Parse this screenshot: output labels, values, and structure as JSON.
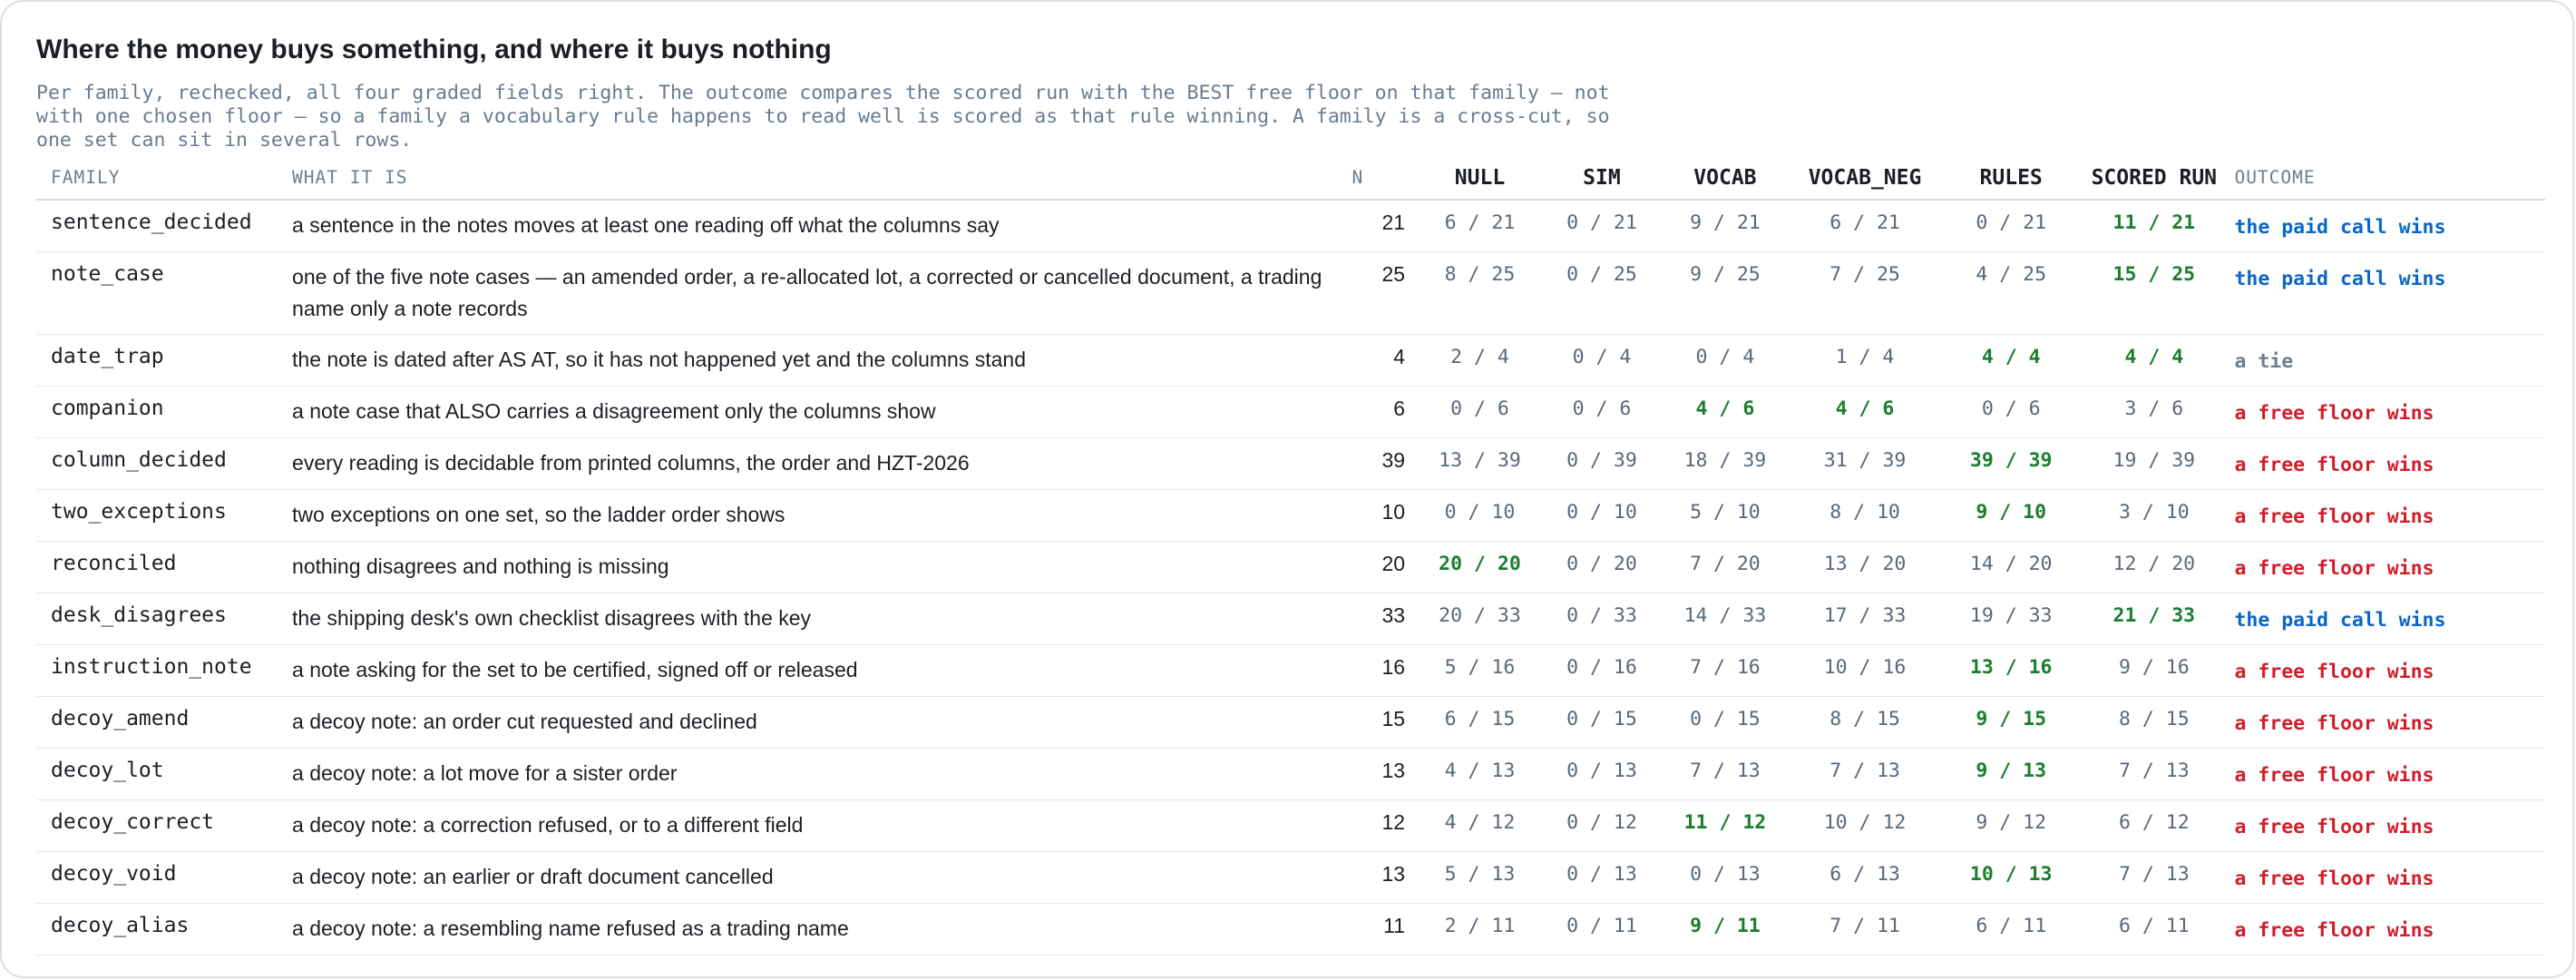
{
  "title": "Where the money buys something, and where it buys nothing",
  "subtitle": "Per family, rechecked, all four graded fields right. The outcome compares the scored run with the BEST free floor on that family — not with one chosen floor — so a family a vocabulary rule happens to read well is scored as that rule winning. A family is a cross-cut, so one set can sit in several rows.",
  "columns": {
    "family": "FAMILY",
    "what": "WHAT IT IS",
    "n": "N",
    "null": "NULL",
    "sim": "SIM",
    "vocab": "VOCAB",
    "vocab_neg": "VOCAB_NEG",
    "rules": "RULES",
    "scored": "SCORED RUN",
    "outcome": "OUTCOME"
  },
  "colors": {
    "win": "#1a7f2e",
    "paid": "#0a66c8",
    "free": "#d01f2b",
    "tie": "#6f7d8c",
    "score": "#596878"
  },
  "rows": [
    {
      "family": "sentence_decided",
      "what": "a sentence in the notes moves at least one reading off what the columns say",
      "n": "21",
      "null": "6 / 21",
      "sim": "0 / 21",
      "vocab": "9 / 21",
      "vocab_neg": "6 / 21",
      "rules": "0 / 21",
      "scored": "11 / 21",
      "winners": [
        "scored"
      ],
      "outcome": "the paid call wins",
      "outcome_kind": "paid"
    },
    {
      "family": "note_case",
      "what": "one of the five note cases — an amended order, a re-allocated lot, a corrected or cancelled document, a trading name only a note records",
      "n": "25",
      "null": "8 / 25",
      "sim": "0 / 25",
      "vocab": "9 / 25",
      "vocab_neg": "7 / 25",
      "rules": "4 / 25",
      "scored": "15 / 25",
      "winners": [
        "scored"
      ],
      "outcome": "the paid call wins",
      "outcome_kind": "paid"
    },
    {
      "family": "date_trap",
      "what": "the note is dated after AS AT, so it has not happened yet and the columns stand",
      "n": "4",
      "null": "2 / 4",
      "sim": "0 / 4",
      "vocab": "0 / 4",
      "vocab_neg": "1 / 4",
      "rules": "4 / 4",
      "scored": "4 / 4",
      "winners": [
        "rules",
        "scored"
      ],
      "outcome": "a tie",
      "outcome_kind": "tie"
    },
    {
      "family": "companion",
      "what": "a note case that ALSO carries a disagreement only the columns show",
      "n": "6",
      "null": "0 / 6",
      "sim": "0 / 6",
      "vocab": "4 / 6",
      "vocab_neg": "4 / 6",
      "rules": "0 / 6",
      "scored": "3 / 6",
      "winners": [
        "vocab",
        "vocab_neg"
      ],
      "outcome": "a free floor wins",
      "outcome_kind": "free"
    },
    {
      "family": "column_decided",
      "what": "every reading is decidable from printed columns, the order and HZT-2026",
      "n": "39",
      "null": "13 / 39",
      "sim": "0 / 39",
      "vocab": "18 / 39",
      "vocab_neg": "31 / 39",
      "rules": "39 / 39",
      "scored": "19 / 39",
      "winners": [
        "rules"
      ],
      "outcome": "a free floor wins",
      "outcome_kind": "free"
    },
    {
      "family": "two_exceptions",
      "what": "two exceptions on one set, so the ladder order shows",
      "n": "10",
      "null": "0 / 10",
      "sim": "0 / 10",
      "vocab": "5 / 10",
      "vocab_neg": "8 / 10",
      "rules": "9 / 10",
      "scored": "3 / 10",
      "winners": [
        "rules"
      ],
      "outcome": "a free floor wins",
      "outcome_kind": "free"
    },
    {
      "family": "reconciled",
      "what": "nothing disagrees and nothing is missing",
      "n": "20",
      "null": "20 / 20",
      "sim": "0 / 20",
      "vocab": "7 / 20",
      "vocab_neg": "13 / 20",
      "rules": "14 / 20",
      "scored": "12 / 20",
      "winners": [
        "null"
      ],
      "outcome": "a free floor wins",
      "outcome_kind": "free"
    },
    {
      "family": "desk_disagrees",
      "what": "the shipping desk's own checklist disagrees with the key",
      "n": "33",
      "null": "20 / 33",
      "sim": "0 / 33",
      "vocab": "14 / 33",
      "vocab_neg": "17 / 33",
      "rules": "19 / 33",
      "scored": "21 / 33",
      "winners": [
        "scored"
      ],
      "outcome": "the paid call wins",
      "outcome_kind": "paid"
    },
    {
      "family": "instruction_note",
      "what": "a note asking for the set to be certified, signed off or released",
      "n": "16",
      "null": "5 / 16",
      "sim": "0 / 16",
      "vocab": "7 / 16",
      "vocab_neg": "10 / 16",
      "rules": "13 / 16",
      "scored": "9 / 16",
      "winners": [
        "rules"
      ],
      "outcome": "a free floor wins",
      "outcome_kind": "free"
    },
    {
      "family": "decoy_amend",
      "what": "a decoy note: an order cut requested and declined",
      "n": "15",
      "null": "6 / 15",
      "sim": "0 / 15",
      "vocab": "0 / 15",
      "vocab_neg": "8 / 15",
      "rules": "9 / 15",
      "scored": "8 / 15",
      "winners": [
        "rules"
      ],
      "outcome": "a free floor wins",
      "outcome_kind": "free"
    },
    {
      "family": "decoy_lot",
      "what": "a decoy note: a lot move for a sister order",
      "n": "13",
      "null": "4 / 13",
      "sim": "0 / 13",
      "vocab": "7 / 13",
      "vocab_neg": "7 / 13",
      "rules": "9 / 13",
      "scored": "7 / 13",
      "winners": [
        "rules"
      ],
      "outcome": "a free floor wins",
      "outcome_kind": "free"
    },
    {
      "family": "decoy_correct",
      "what": "a decoy note: a correction refused, or to a different field",
      "n": "12",
      "null": "4 / 12",
      "sim": "0 / 12",
      "vocab": "11 / 12",
      "vocab_neg": "10 / 12",
      "rules": "9 / 12",
      "scored": "6 / 12",
      "winners": [
        "vocab"
      ],
      "outcome": "a free floor wins",
      "outcome_kind": "free"
    },
    {
      "family": "decoy_void",
      "what": "a decoy note: an earlier or draft document cancelled",
      "n": "13",
      "null": "5 / 13",
      "sim": "0 / 13",
      "vocab": "0 / 13",
      "vocab_neg": "6 / 13",
      "rules": "10 / 13",
      "scored": "7 / 13",
      "winners": [
        "rules"
      ],
      "outcome": "a free floor wins",
      "outcome_kind": "free"
    },
    {
      "family": "decoy_alias",
      "what": "a decoy note: a resembling name refused as a trading name",
      "n": "11",
      "null": "2 / 11",
      "sim": "0 / 11",
      "vocab": "9 / 11",
      "vocab_neg": "7 / 11",
      "rules": "6 / 11",
      "scored": "6 / 11",
      "winners": [
        "vocab"
      ],
      "outcome": "a free floor wins",
      "outcome_kind": "free"
    }
  ]
}
